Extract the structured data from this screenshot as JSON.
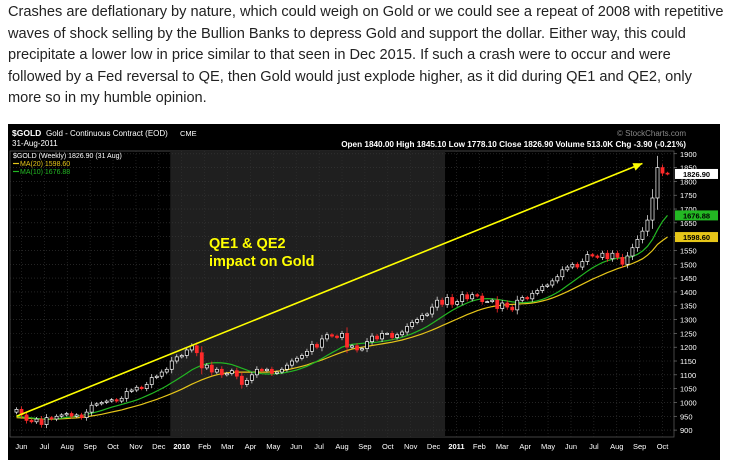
{
  "article": {
    "text": "Crashes are deflationary by nature, which could weigh on Gold or we could see a repeat of 2008 with repetitive waves of shock selling by the Bullion Banks to depress Gold and support the dollar. Either way, this could precipitate a lower low in price similar to that seen in Dec 2015. If such a crash were to occur and were followed by a Fed reversal to QE, then Gold would just explode higher, as it did during QE1 and QE2, only more so in my humble opinion."
  },
  "chart": {
    "symbol": "$GOLD",
    "title": "Gold - Continuous Contract (EOD)",
    "exchange": "CME",
    "date": "31-Aug-2011",
    "watermark": "© StockCharts.com",
    "ohlc_line": "Open 1840.00  High 1845.10  Low 1778.10  Close 1826.90  Volume 513.0K  Chg -3.90 (-0.21%)",
    "legend": [
      {
        "text": "$GOLD (Weekly) 1826.90 (31 Aug)",
        "color": "#ffffff"
      },
      {
        "text": "MA(20) 1598.60",
        "color": "#e6c619"
      },
      {
        "text": "MA(10) 1676.88",
        "color": "#23b823"
      }
    ],
    "annotation": {
      "line1": "QE1 & QE2",
      "line2": "impact on Gold",
      "color": "#ffff00"
    },
    "price_tags": [
      {
        "text": "1826.90",
        "value": 1826.9,
        "bg": "#ffffff",
        "fg": "#000000"
      },
      {
        "text": "1676.88",
        "value": 1676.88,
        "bg": "#23b823",
        "fg": "#000000"
      },
      {
        "text": "1598.60",
        "value": 1598.6,
        "bg": "#e6c619",
        "fg": "#000000"
      }
    ]
  },
  "chart_data": {
    "type": "candlestick",
    "y_ticks": [
      900,
      950,
      1000,
      1050,
      1100,
      1150,
      1200,
      1250,
      1300,
      1350,
      1400,
      1450,
      1500,
      1550,
      1600,
      1650,
      1700,
      1750,
      1800,
      1850,
      1900
    ],
    "ylim": [
      875,
      1910
    ],
    "x_labels": [
      "Jun",
      "Jul",
      "Aug",
      "Sep",
      "Oct",
      "Nov",
      "Dec",
      "2010",
      "Feb",
      "Mar",
      "Apr",
      "May",
      "Jun",
      "Jul",
      "Aug",
      "Sep",
      "Oct",
      "Nov",
      "Dec",
      "2011",
      "Feb",
      "Mar",
      "Apr",
      "May",
      "Jun",
      "Jul",
      "Aug",
      "Sep",
      "Oct"
    ],
    "bold_labels": [
      "2010",
      "2011"
    ],
    "shaded_ranges": [
      [
        6.5,
        18.5
      ]
    ],
    "closes": [
      975,
      955,
      935,
      930,
      940,
      920,
      945,
      940,
      950,
      955,
      960,
      950,
      955,
      945,
      965,
      990,
      995,
      1000,
      1005,
      1010,
      1005,
      1015,
      1040,
      1045,
      1055,
      1050,
      1065,
      1090,
      1095,
      1110,
      1120,
      1150,
      1165,
      1170,
      1190,
      1205,
      1180,
      1125,
      1135,
      1110,
      1120,
      1100,
      1105,
      1115,
      1095,
      1065,
      1080,
      1100,
      1120,
      1115,
      1120,
      1105,
      1110,
      1120,
      1135,
      1150,
      1160,
      1170,
      1185,
      1210,
      1200,
      1230,
      1245,
      1240,
      1235,
      1250,
      1200,
      1205,
      1190,
      1195,
      1220,
      1240,
      1230,
      1250,
      1250,
      1235,
      1245,
      1255,
      1275,
      1290,
      1300,
      1315,
      1320,
      1345,
      1370,
      1355,
      1380,
      1355,
      1365,
      1390,
      1375,
      1390,
      1385,
      1365,
      1365,
      1370,
      1340,
      1360,
      1345,
      1335,
      1370,
      1380,
      1375,
      1395,
      1405,
      1420,
      1425,
      1440,
      1455,
      1480,
      1490,
      1500,
      1490,
      1510,
      1535,
      1530,
      1525,
      1540,
      1520,
      1540,
      1525,
      1500,
      1530,
      1560,
      1590,
      1620,
      1660,
      1740,
      1850,
      1830,
      1826.9
    ],
    "ma10": [
      950,
      948,
      946,
      944,
      942,
      941,
      940,
      939,
      941,
      943,
      946,
      948,
      950,
      953,
      957,
      961,
      966,
      971,
      977,
      983,
      988,
      993,
      998,
      1003,
      1009,
      1016,
      1024,
      1032,
      1041,
      1050,
      1060,
      1071,
      1082,
      1094,
      1106,
      1118,
      1127,
      1135,
      1140,
      1143,
      1144,
      1143,
      1141,
      1137,
      1131,
      1124,
      1117,
      1110,
      1106,
      1104,
      1103,
      1103,
      1104,
      1106,
      1109,
      1113,
      1118,
      1124,
      1131,
      1140,
      1149,
      1159,
      1170,
      1180,
      1190,
      1200,
      1206,
      1210,
      1212,
      1214,
      1215,
      1217,
      1218,
      1221,
      1224,
      1227,
      1231,
      1236,
      1242,
      1249,
      1257,
      1265,
      1275,
      1286,
      1298,
      1310,
      1322,
      1333,
      1343,
      1352,
      1360,
      1367,
      1372,
      1375,
      1376,
      1375,
      1373,
      1370,
      1367,
      1364,
      1362,
      1361,
      1362,
      1364,
      1368,
      1373,
      1380,
      1388,
      1398,
      1410,
      1423,
      1436,
      1449,
      1462,
      1475,
      1487,
      1497,
      1506,
      1513,
      1518,
      1522,
      1523,
      1524,
      1528,
      1536,
      1548,
      1565,
      1590,
      1625,
      1655,
      1676.88
    ],
    "ma20": [
      945,
      944,
      943,
      942,
      941,
      940,
      939,
      939,
      940,
      941,
      942,
      943,
      944,
      946,
      948,
      951,
      954,
      957,
      961,
      965,
      969,
      973,
      978,
      983,
      988,
      993,
      999,
      1005,
      1011,
      1018,
      1025,
      1032,
      1040,
      1048,
      1057,
      1066,
      1074,
      1082,
      1089,
      1095,
      1100,
      1104,
      1107,
      1109,
      1110,
      1110,
      1110,
      1110,
      1110,
      1110,
      1110,
      1111,
      1113,
      1115,
      1118,
      1122,
      1126,
      1131,
      1136,
      1142,
      1148,
      1154,
      1161,
      1168,
      1175,
      1182,
      1188,
      1193,
      1197,
      1200,
      1203,
      1206,
      1209,
      1212,
      1215,
      1218,
      1222,
      1226,
      1231,
      1236,
      1242,
      1248,
      1255,
      1262,
      1270,
      1278,
      1286,
      1294,
      1302,
      1310,
      1318,
      1325,
      1332,
      1338,
      1343,
      1347,
      1350,
      1352,
      1354,
      1355,
      1356,
      1357,
      1358,
      1360,
      1363,
      1367,
      1372,
      1378,
      1385,
      1393,
      1401,
      1410,
      1419,
      1428,
      1437,
      1446,
      1454,
      1462,
      1470,
      1477,
      1484,
      1490,
      1496,
      1503,
      1511,
      1520,
      1533,
      1550,
      1572,
      1586,
      1598.6
    ],
    "trendline": {
      "from": [
        0,
        950
      ],
      "to": [
        125,
        1865
      ]
    }
  }
}
